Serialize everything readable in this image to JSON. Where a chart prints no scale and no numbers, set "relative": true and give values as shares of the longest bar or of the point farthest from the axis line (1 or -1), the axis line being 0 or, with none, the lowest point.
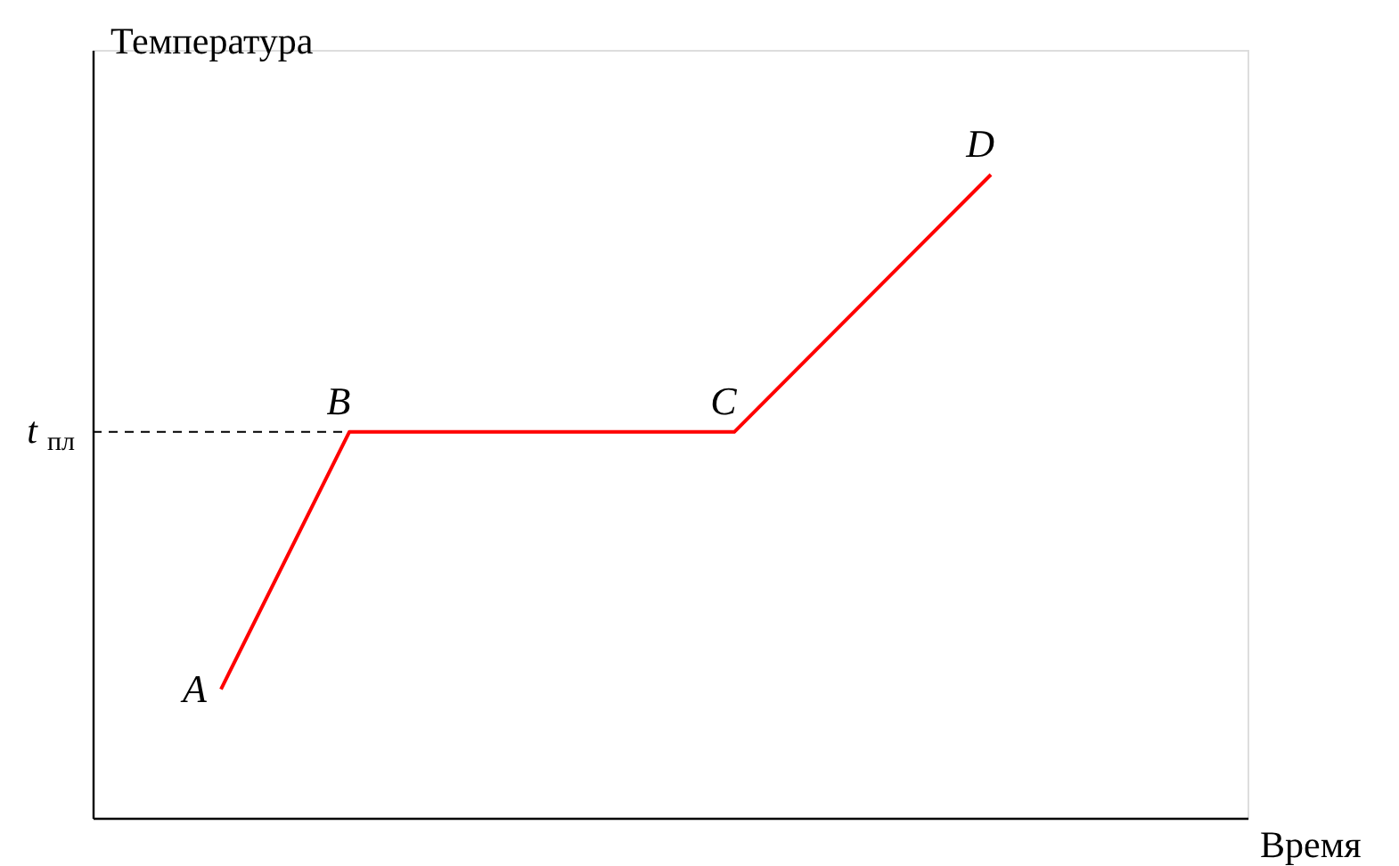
{
  "chart_data": {
    "type": "line",
    "relative": true,
    "xlabel": "Время",
    "ylabel": "Температура",
    "categories": [
      null,
      null,
      null,
      null,
      null,
      null,
      null,
      null,
      null,
      null
    ],
    "tick_labels": false,
    "grid": false,
    "marker": "none",
    "line_style": "solid",
    "series": [
      {
        "color": "#ff0000",
        "values": [
          null,
          0.2,
          0.6,
          null,
          null,
          0.6,
          null,
          1.0,
          null,
          null
        ]
      }
    ],
    "ref_lines": [
      {
        "axis": "y",
        "value": 0.6,
        "label": "t$_{пл}$",
        "color": "#000000",
        "line_style": "dashed"
      }
    ],
    "annotations": [
      "A",
      "B",
      "C",
      "D"
    ]
  }
}
